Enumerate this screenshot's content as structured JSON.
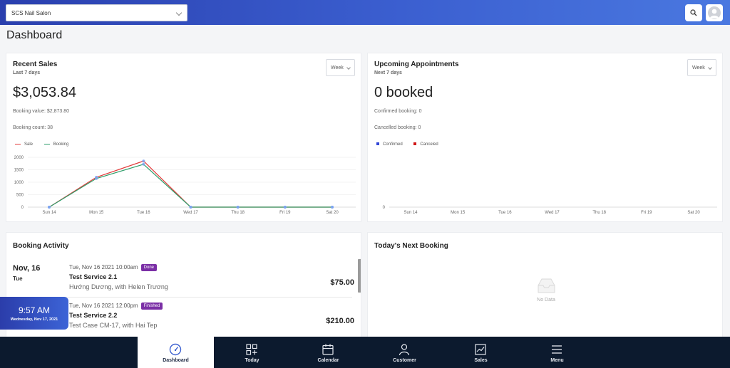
{
  "topbar": {
    "salon": "SCS Nail Salon"
  },
  "page_title": "Dashboard",
  "recent_sales": {
    "title": "Recent Sales",
    "subtitle": "Last 7 days",
    "range": "Week",
    "total": "$3,053.84",
    "booking_value": "Booking value: $2,873.80",
    "booking_count": "Booking count: 38",
    "legend": [
      "Sale",
      "Booking"
    ]
  },
  "upcoming": {
    "title": "Upcoming Appointments",
    "subtitle": "Next 7 days",
    "range": "Week",
    "total": "0 booked",
    "confirmed": "Confirmed booking: 0",
    "cancelled": "Cancelled booking: 0",
    "legend": [
      "Confirmed",
      "Canceled"
    ]
  },
  "chart_data": [
    {
      "type": "line",
      "categories": [
        "Sun 14",
        "Mon 15",
        "Tue 16",
        "Wed 17",
        "Thu 18",
        "Fri 19",
        "Sat 20"
      ],
      "series": [
        {
          "name": "Sale",
          "values": [
            0,
            1200,
            1850,
            0,
            0,
            0,
            0
          ],
          "color": "#e23b3b"
        },
        {
          "name": "Booking",
          "values": [
            0,
            1150,
            1720,
            0,
            0,
            0,
            0
          ],
          "color": "#2e9e6a"
        }
      ],
      "yticks": [
        "0",
        "500",
        "1000",
        "1500",
        "2000"
      ],
      "ylim": [
        0,
        2000
      ]
    },
    {
      "type": "bar",
      "categories": [
        "Sun 14",
        "Mon 15",
        "Tue 16",
        "Wed 17",
        "Thu 18",
        "Fri 19",
        "Sat 20"
      ],
      "series": [
        {
          "name": "Confirmed",
          "values": [
            0,
            0,
            0,
            0,
            0,
            0,
            0
          ],
          "color": "#3146d6"
        },
        {
          "name": "Canceled",
          "values": [
            0,
            0,
            0,
            0,
            0,
            0,
            0
          ],
          "color": "#d01616"
        }
      ],
      "yticks": [
        "0"
      ],
      "ylim": [
        0,
        1
      ]
    }
  ],
  "activity": {
    "title": "Booking Activity",
    "date": "Nov, 16",
    "day": "Tue",
    "bookings": [
      {
        "time": "Tue, Nov 16 2021 10:00am",
        "status": "Done",
        "service": "Test Service 2.1",
        "people": "Hướng Dương, with Helen Trương",
        "price": "$75.00"
      },
      {
        "time": "Tue, Nov 16 2021 12:00pm",
        "status": "Finished",
        "service": "Test Service 2.2",
        "people": "Test Case CM-17, with Hai Tep",
        "price": "$210.00"
      }
    ]
  },
  "next_booking": {
    "title": "Today's Next Booking",
    "empty": "No Data"
  },
  "clock": {
    "time": "9:57 AM",
    "date": "Wednesday, Nov 17, 2021"
  },
  "nav": [
    {
      "label": "Dashboard",
      "icon": "gauge-icon"
    },
    {
      "label": "Today",
      "icon": "grid-plus-icon"
    },
    {
      "label": "Calendar",
      "icon": "calendar-icon"
    },
    {
      "label": "Customer",
      "icon": "person-icon"
    },
    {
      "label": "Sales",
      "icon": "chart-icon"
    },
    {
      "label": "Menu",
      "icon": "hamburger-icon"
    }
  ]
}
